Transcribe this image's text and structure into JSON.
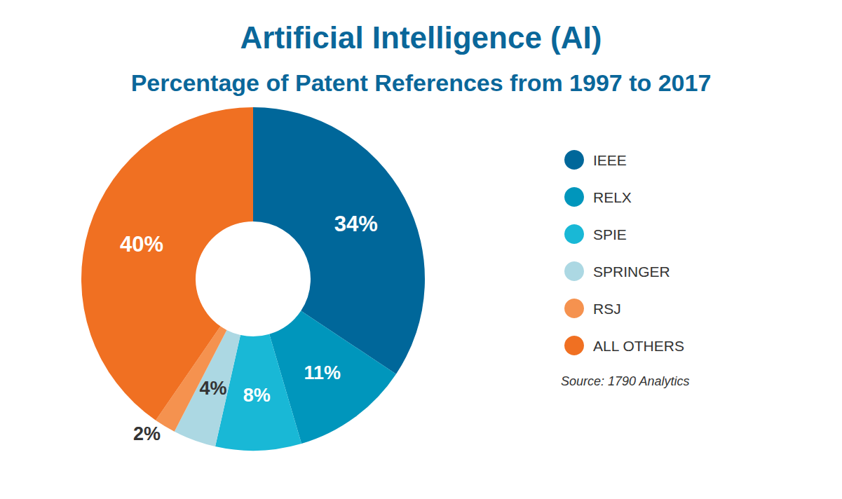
{
  "chart_data": {
    "type": "donut",
    "title": "Artificial Intelligence (AI)",
    "subtitle": "Percentage of Patent References from 1997 to 2017",
    "source": "Source: 1790 Analytics",
    "categories": [
      "IEEE",
      "RELX",
      "SPIE",
      "SPRINGER",
      "RSJ",
      "ALL OTHERS"
    ],
    "values": [
      34,
      11,
      8,
      4,
      2,
      40
    ],
    "value_labels": [
      "34%",
      "11%",
      "8%",
      "4%",
      "2%",
      "40%"
    ],
    "colors": [
      "#00679a",
      "#0096bc",
      "#19b8d6",
      "#acd8e3",
      "#f5924f",
      "#f07022"
    ],
    "data_labels": true,
    "legend": "right"
  }
}
